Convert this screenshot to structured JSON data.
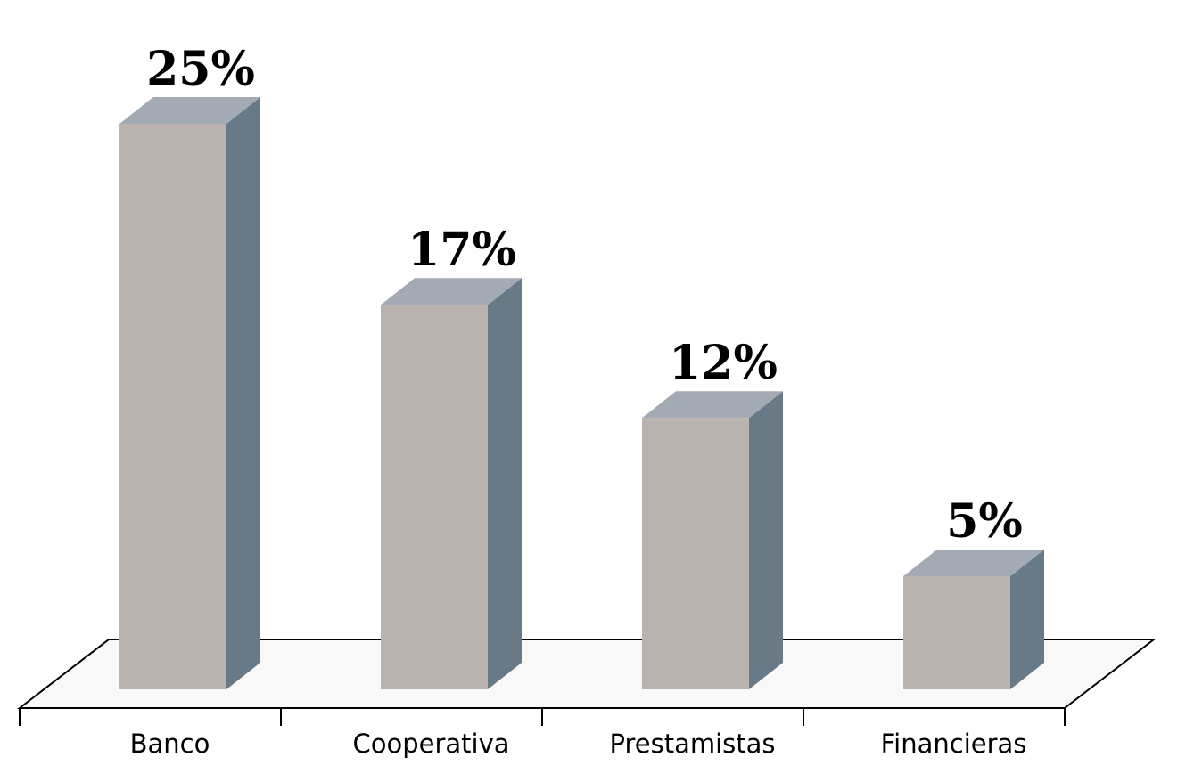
{
  "chart_data": {
    "type": "bar",
    "style": "3d-column",
    "title": "",
    "xlabel": "",
    "ylabel": "",
    "categories": [
      "Banco",
      "Cooperativa",
      "Prestamistas",
      "Financieras"
    ],
    "values": [
      25,
      17,
      12,
      5
    ],
    "value_labels": [
      "25%",
      "17%",
      "12%",
      "5%"
    ],
    "ylim": [
      0,
      25
    ],
    "grid": false,
    "legend": "none",
    "colors": {
      "front": "#bab2af",
      "top": "#a3aab3",
      "side": "#687a88",
      "floor": "#f9f8f8",
      "axis": "#000000"
    }
  }
}
